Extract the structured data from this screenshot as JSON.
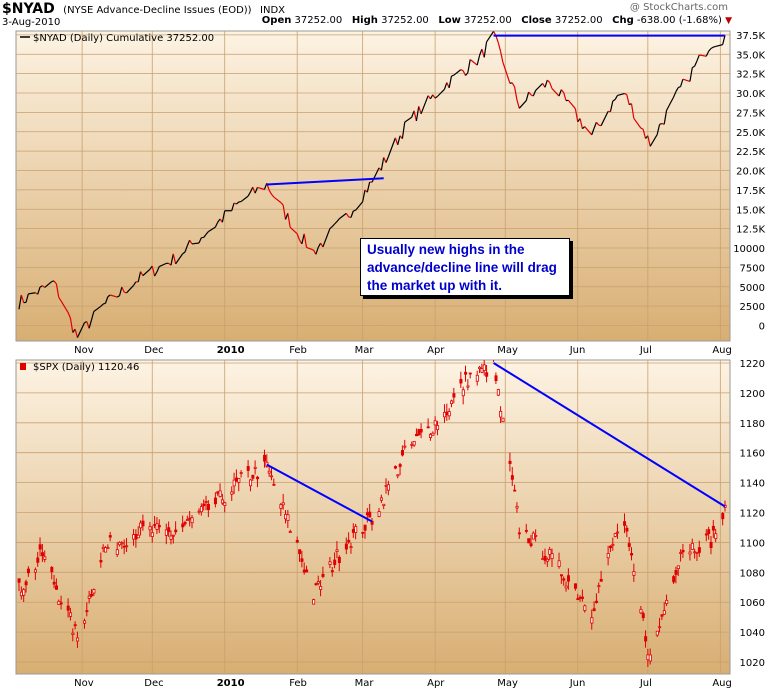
{
  "header": {
    "symbol": "$NYAD",
    "description": "(NYSE Advance-Decline Issues (EOD))",
    "exchange": "INDX",
    "date": "3-Aug-2010",
    "watermark": "@ StockCharts.com",
    "open_label": "Open",
    "open": "37252.00",
    "high_label": "High",
    "high": "37252.00",
    "low_label": "Low",
    "low": "37252.00",
    "close_label": "Close",
    "close": "37252.00",
    "chg_label": "Chg",
    "chg": "-638.00 (-1.68%)"
  },
  "annotation": "Usually new highs in the advance/decline line will drag the market up with it.",
  "chart_data": [
    {
      "type": "line",
      "legend": "$NYAD (Daily) Cumulative 37252.00",
      "x": [
        "2009-10-05",
        "2009-10-20",
        "2009-10-30",
        "2009-11-10",
        "2009-11-25",
        "2009-12-10",
        "2009-12-28",
        "2010-01-10",
        "2010-01-19",
        "2010-02-01",
        "2010-02-08",
        "2010-02-22",
        "2010-03-05",
        "2010-03-20",
        "2010-04-05",
        "2010-04-20",
        "2010-04-26",
        "2010-05-07",
        "2010-05-20",
        "2010-06-07",
        "2010-06-20",
        "2010-07-02",
        "2010-07-15",
        "2010-07-28",
        "2010-08-03"
      ],
      "y": [
        3000,
        5500,
        -1500,
        2500,
        6000,
        8500,
        13000,
        16500,
        18200,
        12000,
        9500,
        14000,
        18500,
        26000,
        31000,
        34500,
        37300,
        28500,
        31500,
        24500,
        30500,
        23500,
        30500,
        36500,
        37252
      ],
      "ylim": [
        -2000,
        38000
      ],
      "yticks": [
        0,
        2500,
        5000,
        7500,
        10000,
        12500,
        15000,
        17500,
        20000,
        22500,
        25000,
        27500,
        30000,
        32500,
        35000,
        37500
      ],
      "ytick_labels": [
        "0",
        "2500",
        "5000",
        "7500",
        "10000",
        "12.5K",
        "15.0K",
        "17.5K",
        "20.0K",
        "22.5K",
        "25.0K",
        "27.5K",
        "30.0K",
        "32.5K",
        "35.0K",
        "37.5K"
      ],
      "trendlines": [
        {
          "from": [
            "2010-01-19",
            18200
          ],
          "to": [
            "2010-03-10",
            19000
          ]
        },
        {
          "from": [
            "2010-04-26",
            37400
          ],
          "to": [
            "2010-08-03",
            37400
          ]
        }
      ],
      "grid": true
    },
    {
      "type": "candlestick",
      "legend": "$SPX (Daily) 1120.46",
      "x": [
        "2009-10-05",
        "2009-10-15",
        "2009-10-30",
        "2009-11-10",
        "2009-11-25",
        "2009-12-10",
        "2009-12-28",
        "2010-01-10",
        "2010-01-19",
        "2010-02-01",
        "2010-02-08",
        "2010-02-22",
        "2010-03-05",
        "2010-03-20",
        "2010-04-05",
        "2010-04-15",
        "2010-04-26",
        "2010-05-07",
        "2010-05-20",
        "2010-06-07",
        "2010-06-20",
        "2010-07-02",
        "2010-07-15",
        "2010-07-28",
        "2010-08-03"
      ],
      "y": [
        1068,
        1092,
        1036,
        1095,
        1108,
        1106,
        1126,
        1144,
        1150,
        1098,
        1065,
        1100,
        1116,
        1162,
        1186,
        1210,
        1218,
        1110,
        1090,
        1055,
        1118,
        1022,
        1095,
        1102,
        1120
      ],
      "ylim": [
        1012,
        1222
      ],
      "yticks": [
        1020,
        1040,
        1060,
        1080,
        1100,
        1120,
        1140,
        1160,
        1180,
        1200,
        1220
      ],
      "trendlines": [
        {
          "from": [
            "2010-01-19",
            1152
          ],
          "to": [
            "2010-03-05",
            1114
          ]
        },
        {
          "from": [
            "2010-04-26",
            1220
          ],
          "to": [
            "2010-08-03",
            1124
          ]
        }
      ],
      "grid": true
    }
  ],
  "x_axis": {
    "labels": [
      "Nov",
      "Dec",
      "2010",
      "Feb",
      "Mar",
      "Apr",
      "May",
      "Jun",
      "Jul",
      "Aug"
    ],
    "dates": [
      "2009-11-01",
      "2009-12-01",
      "2010-01-01",
      "2010-02-01",
      "2010-03-01",
      "2010-04-01",
      "2010-05-01",
      "2010-06-01",
      "2010-07-01",
      "2010-08-01"
    ]
  },
  "colors": {
    "up_line": "#000000",
    "down_line": "#e00000",
    "trend": "#0000ff",
    "bg_top": "#fdf3e3",
    "bg_bottom": "#d8ae72",
    "grid": "#c8a070"
  }
}
